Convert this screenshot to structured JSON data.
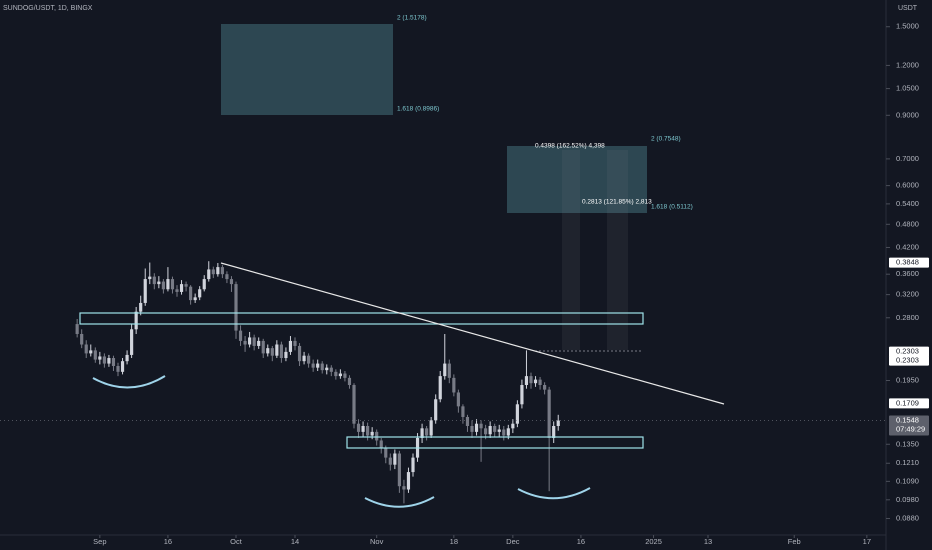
{
  "chart_data": {
    "type": "candlestick",
    "title": "SUNDOG/USDT, 1D, BINGX",
    "y_axis_label": "USDT",
    "log_scale": true,
    "up_color": "#d1d4dc",
    "down_color": "#787b86",
    "x": [
      "2024-08-27",
      "2024-08-28",
      "2024-08-29",
      "2024-08-30",
      "2024-08-31",
      "2024-09-01",
      "2024-09-02",
      "2024-09-03",
      "2024-09-04",
      "2024-09-05",
      "2024-09-06",
      "2024-09-07",
      "2024-09-08",
      "2024-09-09",
      "2024-09-10",
      "2024-09-11",
      "2024-09-12",
      "2024-09-13",
      "2024-09-14",
      "2024-09-15",
      "2024-09-16",
      "2024-09-17",
      "2024-09-18",
      "2024-09-19",
      "2024-09-20",
      "2024-09-21",
      "2024-09-22",
      "2024-09-23",
      "2024-09-24",
      "2024-09-25",
      "2024-09-26",
      "2024-09-27",
      "2024-09-28",
      "2024-09-29",
      "2024-09-30",
      "2024-10-01",
      "2024-10-02",
      "2024-10-03",
      "2024-10-04",
      "2024-10-05",
      "2024-10-06",
      "2024-10-07",
      "2024-10-08",
      "2024-10-09",
      "2024-10-10",
      "2024-10-11",
      "2024-10-12",
      "2024-10-13",
      "2024-10-14",
      "2024-10-15",
      "2024-10-16",
      "2024-10-17",
      "2024-10-18",
      "2024-10-19",
      "2024-10-20",
      "2024-10-21",
      "2024-10-22",
      "2024-10-23",
      "2024-10-24",
      "2024-10-25",
      "2024-10-26",
      "2024-10-27",
      "2024-10-28",
      "2024-10-29",
      "2024-10-30",
      "2024-10-31",
      "2024-11-01",
      "2024-11-02",
      "2024-11-03",
      "2024-11-04",
      "2024-11-05",
      "2024-11-06",
      "2024-11-07",
      "2024-11-08",
      "2024-11-09",
      "2024-11-10",
      "2024-11-11",
      "2024-11-12",
      "2024-11-13",
      "2024-11-14",
      "2024-11-15",
      "2024-11-16",
      "2024-11-17",
      "2024-11-18",
      "2024-11-19",
      "2024-11-20",
      "2024-11-21",
      "2024-11-22",
      "2024-11-23",
      "2024-11-24",
      "2024-11-25",
      "2024-11-26",
      "2024-11-27",
      "2024-11-28",
      "2024-11-29",
      "2024-11-30",
      "2024-12-01",
      "2024-12-02",
      "2024-12-03",
      "2024-12-04",
      "2024-12-05",
      "2024-12-06",
      "2024-12-07",
      "2024-12-08",
      "2024-12-09",
      "2024-12-10",
      "2024-12-11"
    ],
    "open": [
      0.27,
      0.255,
      0.24,
      0.228,
      0.232,
      0.22,
      0.224,
      0.215,
      0.222,
      0.212,
      0.205,
      0.218,
      0.226,
      0.262,
      0.29,
      0.305,
      0.35,
      0.355,
      0.34,
      0.345,
      0.33,
      0.35,
      0.33,
      0.325,
      0.34,
      0.335,
      0.31,
      0.315,
      0.33,
      0.35,
      0.37,
      0.36,
      0.375,
      0.36,
      0.35,
      0.34,
      0.26,
      0.245,
      0.24,
      0.25,
      0.238,
      0.245,
      0.228,
      0.235,
      0.225,
      0.24,
      0.222,
      0.23,
      0.245,
      0.238,
      0.218,
      0.225,
      0.215,
      0.21,
      0.215,
      0.207,
      0.21,
      0.205,
      0.2,
      0.203,
      0.198,
      0.19,
      0.152,
      0.145,
      0.15,
      0.142,
      0.145,
      0.138,
      0.132,
      0.125,
      0.12,
      0.128,
      0.106,
      0.104,
      0.115,
      0.125,
      0.14,
      0.148,
      0.142,
      0.155,
      0.175,
      0.2,
      0.215,
      0.198,
      0.182,
      0.168,
      0.158,
      0.15,
      0.145,
      0.152,
      0.148,
      0.143,
      0.15,
      0.145,
      0.147,
      0.142,
      0.148,
      0.152,
      0.17,
      0.19,
      0.2,
      0.192,
      0.196,
      0.19,
      0.185,
      0.14,
      0.15
    ],
    "high": [
      0.278,
      0.262,
      0.246,
      0.24,
      0.236,
      0.23,
      0.228,
      0.226,
      0.225,
      0.216,
      0.222,
      0.232,
      0.27,
      0.298,
      0.318,
      0.372,
      0.385,
      0.362,
      0.356,
      0.35,
      0.375,
      0.355,
      0.338,
      0.348,
      0.345,
      0.338,
      0.322,
      0.336,
      0.358,
      0.388,
      0.376,
      0.384,
      0.38,
      0.366,
      0.356,
      0.345,
      0.268,
      0.252,
      0.258,
      0.254,
      0.25,
      0.248,
      0.24,
      0.238,
      0.246,
      0.244,
      0.236,
      0.252,
      0.25,
      0.242,
      0.23,
      0.228,
      0.22,
      0.22,
      0.218,
      0.214,
      0.213,
      0.208,
      0.208,
      0.206,
      0.201,
      0.192,
      0.156,
      0.154,
      0.153,
      0.149,
      0.147,
      0.14,
      0.134,
      0.128,
      0.131,
      0.13,
      0.11,
      0.118,
      0.128,
      0.144,
      0.152,
      0.15,
      0.158,
      0.18,
      0.206,
      0.255,
      0.22,
      0.202,
      0.185,
      0.17,
      0.16,
      0.155,
      0.156,
      0.155,
      0.151,
      0.154,
      0.152,
      0.151,
      0.15,
      0.151,
      0.156,
      0.174,
      0.196,
      0.232,
      0.204,
      0.2,
      0.199,
      0.193,
      0.188,
      0.154,
      0.16
    ],
    "low": [
      0.25,
      0.235,
      0.222,
      0.224,
      0.216,
      0.214,
      0.21,
      0.211,
      0.206,
      0.2,
      0.202,
      0.214,
      0.222,
      0.255,
      0.284,
      0.3,
      0.34,
      0.33,
      0.332,
      0.322,
      0.326,
      0.322,
      0.316,
      0.32,
      0.326,
      0.302,
      0.305,
      0.31,
      0.326,
      0.345,
      0.352,
      0.355,
      0.352,
      0.342,
      0.325,
      0.248,
      0.238,
      0.23,
      0.236,
      0.232,
      0.234,
      0.222,
      0.224,
      0.218,
      0.222,
      0.216,
      0.218,
      0.226,
      0.232,
      0.212,
      0.214,
      0.21,
      0.205,
      0.206,
      0.203,
      0.202,
      0.2,
      0.196,
      0.197,
      0.194,
      0.186,
      0.148,
      0.14,
      0.141,
      0.138,
      0.139,
      0.134,
      0.128,
      0.121,
      0.116,
      0.117,
      0.102,
      0.096,
      0.102,
      0.112,
      0.122,
      0.136,
      0.138,
      0.14,
      0.152,
      0.172,
      0.196,
      0.192,
      0.178,
      0.162,
      0.152,
      0.145,
      0.14,
      0.142,
      0.122,
      0.139,
      0.14,
      0.141,
      0.141,
      0.138,
      0.139,
      0.144,
      0.149,
      0.166,
      0.186,
      0.186,
      0.188,
      0.185,
      0.18,
      0.103,
      0.136,
      0.146
    ],
    "close": [
      0.255,
      0.24,
      0.228,
      0.232,
      0.22,
      0.224,
      0.215,
      0.222,
      0.212,
      0.205,
      0.218,
      0.226,
      0.262,
      0.29,
      0.305,
      0.35,
      0.355,
      0.34,
      0.345,
      0.33,
      0.35,
      0.33,
      0.325,
      0.34,
      0.335,
      0.31,
      0.315,
      0.33,
      0.35,
      0.37,
      0.36,
      0.375,
      0.36,
      0.35,
      0.34,
      0.26,
      0.245,
      0.24,
      0.25,
      0.238,
      0.245,
      0.228,
      0.235,
      0.225,
      0.24,
      0.222,
      0.23,
      0.245,
      0.238,
      0.218,
      0.225,
      0.215,
      0.21,
      0.215,
      0.207,
      0.21,
      0.205,
      0.2,
      0.203,
      0.198,
      0.19,
      0.152,
      0.145,
      0.15,
      0.142,
      0.145,
      0.138,
      0.132,
      0.125,
      0.12,
      0.128,
      0.106,
      0.104,
      0.115,
      0.125,
      0.14,
      0.148,
      0.142,
      0.155,
      0.175,
      0.2,
      0.215,
      0.198,
      0.182,
      0.168,
      0.158,
      0.15,
      0.145,
      0.152,
      0.148,
      0.143,
      0.15,
      0.145,
      0.147,
      0.142,
      0.148,
      0.152,
      0.17,
      0.19,
      0.2,
      0.192,
      0.196,
      0.19,
      0.185,
      0.14,
      0.15,
      0.1548
    ],
    "xlim": [
      "2024-08-10",
      "2025-02-21"
    ],
    "xticks": [
      {
        "value": "2024-09-01",
        "label": "Sep"
      },
      {
        "value": "2024-09-16",
        "label": "16"
      },
      {
        "value": "2024-10-01",
        "label": "Oct"
      },
      {
        "value": "2024-10-14",
        "label": "14"
      },
      {
        "value": "2024-11-01",
        "label": "Nov"
      },
      {
        "value": "2024-11-18",
        "label": "18"
      },
      {
        "value": "2024-12-01",
        "label": "Dec"
      },
      {
        "value": "2024-12-16",
        "label": "16"
      },
      {
        "value": "2025-01-01",
        "label": "2025"
      },
      {
        "value": "2025-01-13",
        "label": "13"
      },
      {
        "value": "2025-02-01",
        "label": "Feb"
      },
      {
        "value": "2025-02-17",
        "label": "17"
      }
    ],
    "ylim": [
      0.08,
      1.75
    ],
    "yticks": [
      {
        "value": 1.5,
        "label": "1.5000"
      },
      {
        "value": 1.2,
        "label": "1.2000"
      },
      {
        "value": 1.05,
        "label": "1.0500"
      },
      {
        "value": 0.9,
        "label": "0.9000"
      },
      {
        "value": 0.7,
        "label": "0.7000"
      },
      {
        "value": 0.6,
        "label": "0.6000"
      },
      {
        "value": 0.54,
        "label": "0.5400"
      },
      {
        "value": 0.48,
        "label": "0.4800"
      },
      {
        "value": 0.42,
        "label": "0.4200"
      },
      {
        "value": 0.36,
        "label": "0.3600"
      },
      {
        "value": 0.32,
        "label": "0.3200"
      },
      {
        "value": 0.28,
        "label": "0.2800"
      },
      {
        "value": 0.195,
        "label": "0.1950"
      },
      {
        "value": 0.135,
        "label": "0.1350"
      },
      {
        "value": 0.121,
        "label": "0.1210"
      },
      {
        "value": 0.109,
        "label": "0.1090"
      },
      {
        "value": 0.098,
        "label": "0.0980"
      },
      {
        "value": 0.088,
        "label": "0.0880"
      }
    ],
    "price_tags": [
      0.3848,
      0.2303,
      0.2303,
      0.1709,
      0.1548
    ],
    "countdown": "07:49:29",
    "annotations": [
      "2 (1.5178)",
      "1.618 (0.8986)",
      "2 (0.7548)",
      "0.4398 (162.52%) 4,398",
      "0.2813 (121.85%) 2,813",
      "1.618 (0.5112)"
    ]
  }
}
